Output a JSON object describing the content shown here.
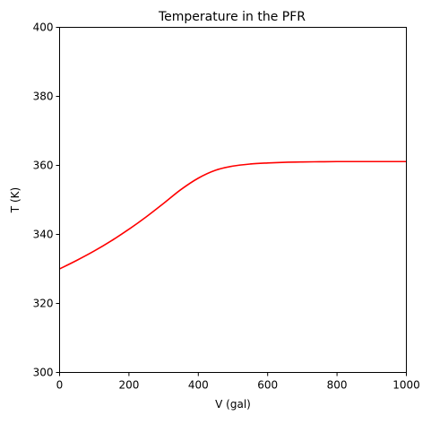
{
  "chart_data": {
    "type": "line",
    "title": "Temperature in the PFR",
    "xlabel": "V (gal)",
    "ylabel": "T (K)",
    "xlim": [
      0,
      1000
    ],
    "ylim": [
      300,
      400
    ],
    "xticks": [
      0,
      200,
      400,
      600,
      800,
      1000
    ],
    "yticks": [
      300,
      320,
      340,
      360,
      380,
      400
    ],
    "grid": false,
    "legend": "none",
    "series": [
      {
        "color": "#ff0000",
        "x": [
          0,
          50,
          100,
          150,
          200,
          250,
          300,
          350,
          400,
          450,
          500,
          550,
          600,
          650,
          700,
          750,
          800,
          850,
          900,
          950,
          1000
        ],
        "y": [
          330.0,
          332.5,
          335.2,
          338.2,
          341.5,
          345.1,
          349.0,
          353.0,
          356.3,
          358.6,
          359.8,
          360.4,
          360.7,
          360.9,
          361.0,
          361.05,
          361.1,
          361.1,
          361.1,
          361.1,
          361.1
        ]
      }
    ]
  }
}
